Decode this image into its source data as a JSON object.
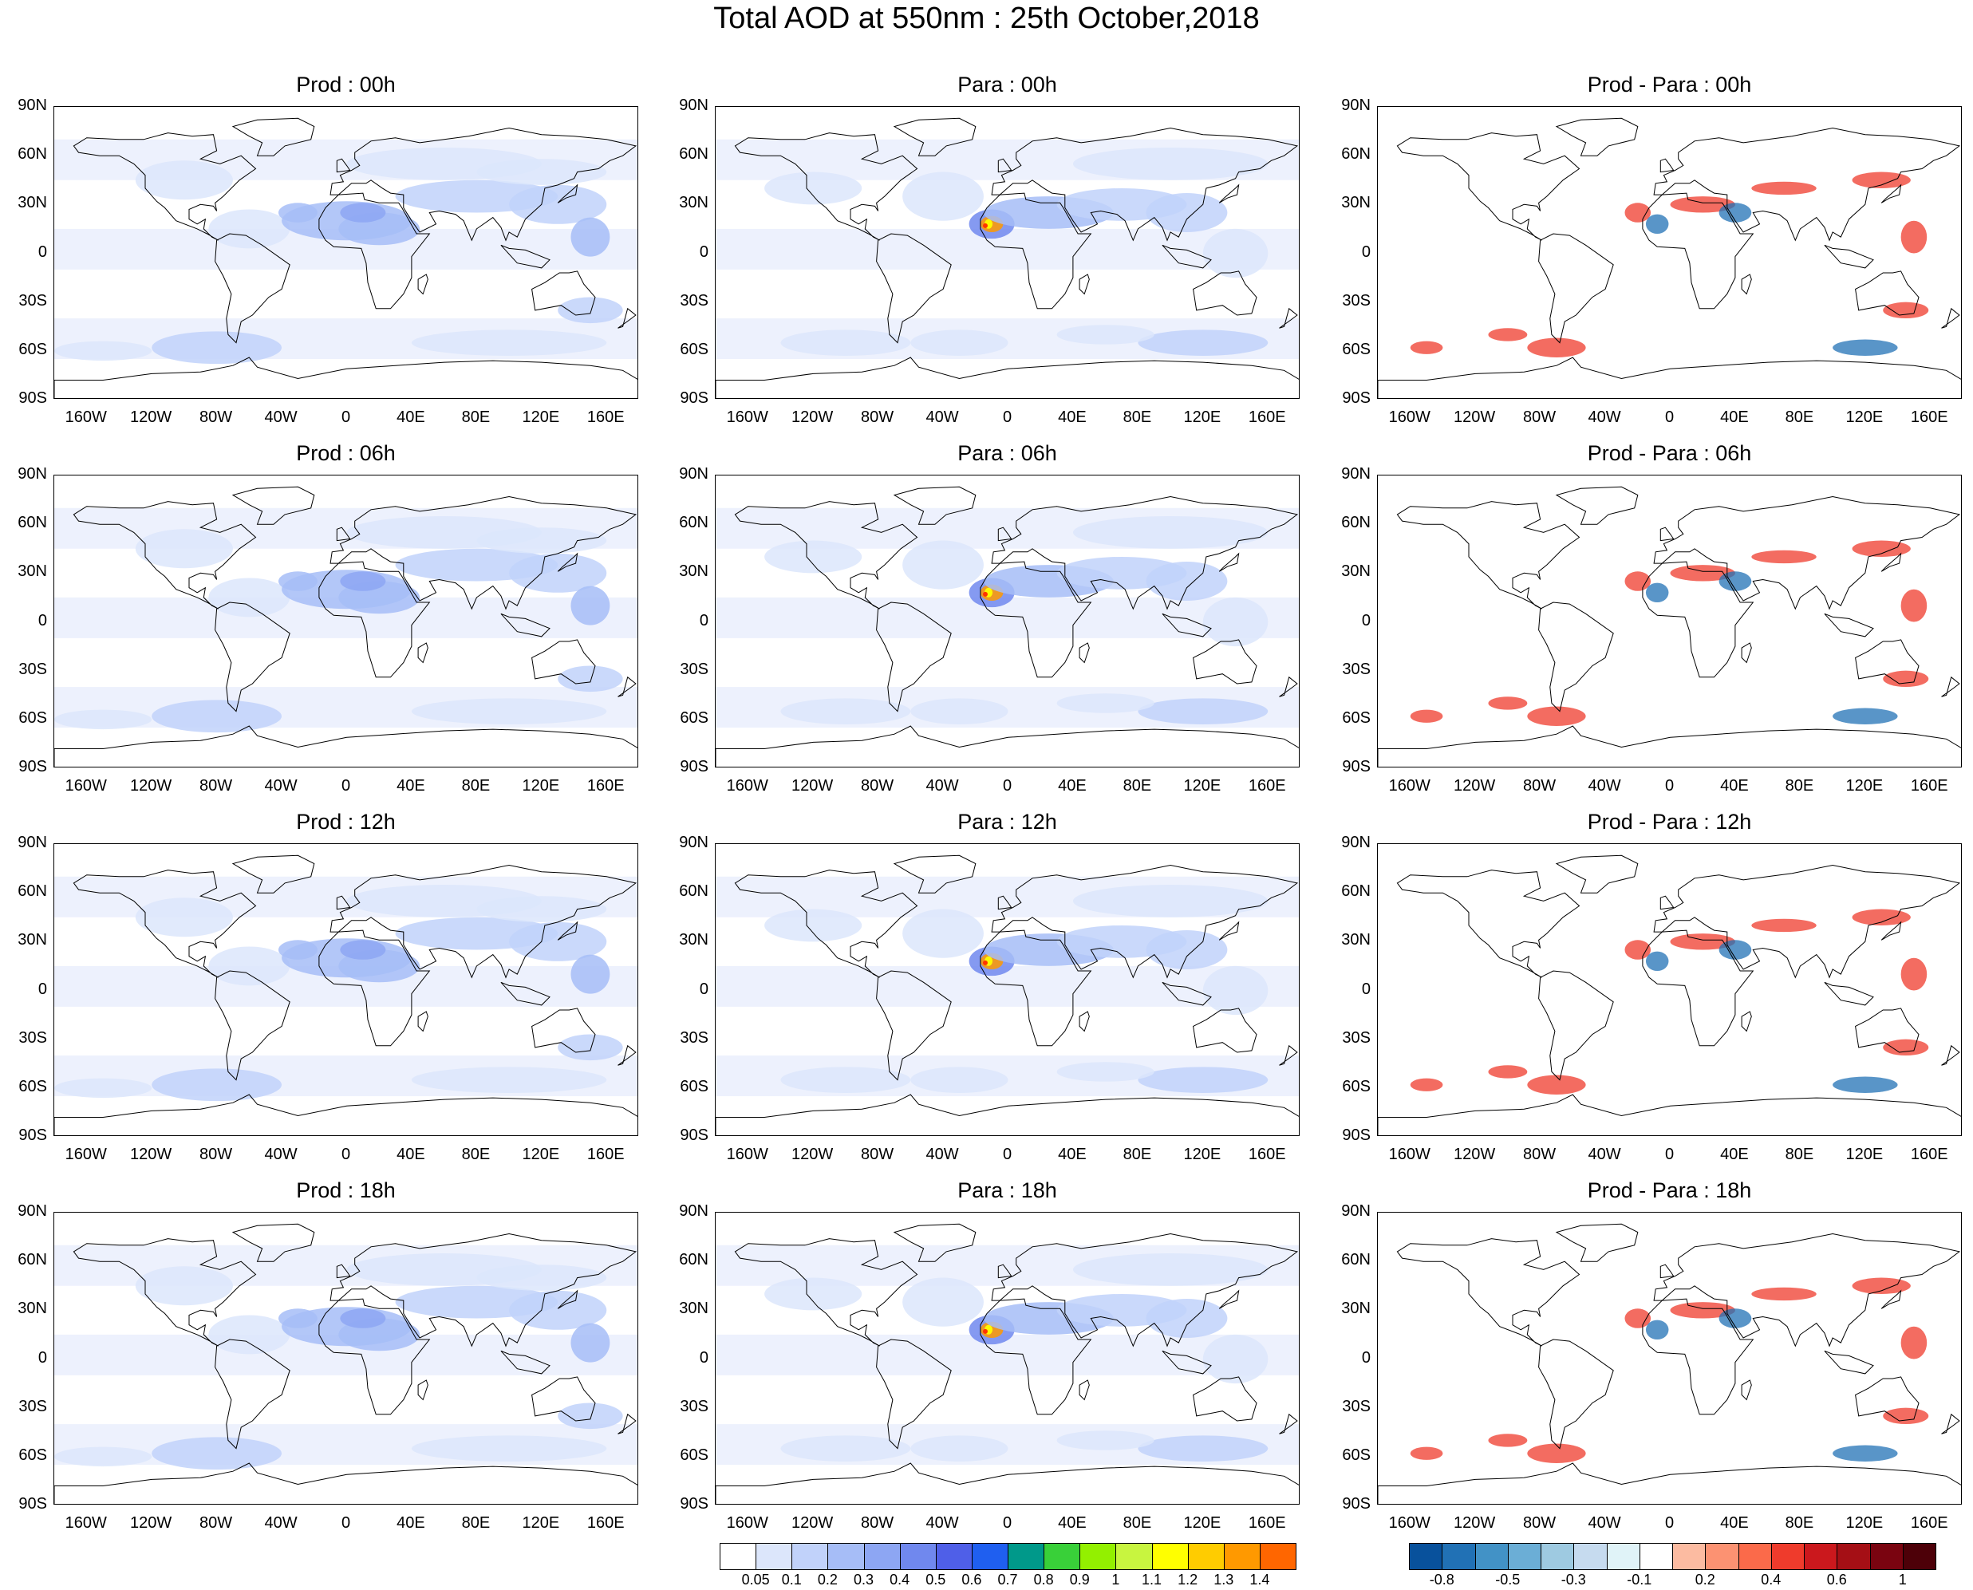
{
  "title": "Total AOD at 550nm : 25th October,2018",
  "lat_labels": [
    "90N",
    "60N",
    "30N",
    "0",
    "30S",
    "60S",
    "90S"
  ],
  "lon_labels": [
    "160W",
    "120W",
    "80W",
    "40W",
    "0",
    "40E",
    "80E",
    "120E",
    "160E"
  ],
  "rows": [
    {
      "hour": "00h",
      "titles": [
        "Prod : 00h",
        "Para : 00h",
        "Prod - Para : 00h"
      ]
    },
    {
      "hour": "06h",
      "titles": [
        "Prod : 06h",
        "Para : 06h",
        "Prod - Para : 06h"
      ]
    },
    {
      "hour": "12h",
      "titles": [
        "Prod : 12h",
        "Para : 12h",
        "Prod - Para : 12h"
      ]
    },
    {
      "hour": "18h",
      "titles": [
        "Prod : 18h",
        "Para : 18h",
        "Prod - Para : 18h"
      ]
    }
  ],
  "aod_colorbar": {
    "labels": [
      "0.05",
      "0.1",
      "0.2",
      "0.3",
      "0.4",
      "0.5",
      "0.6",
      "0.7",
      "0.8",
      "0.9",
      "1",
      "1.1",
      "1.2",
      "1.3",
      "1.4"
    ],
    "colors": [
      "#ffffff",
      "#dce6fb",
      "#c1d2fa",
      "#a6bdf7",
      "#8da6f3",
      "#7088ee",
      "#4f5fe8",
      "#1f5ff0",
      "#00998a",
      "#39d039",
      "#93f000",
      "#c8f53f",
      "#ffff00",
      "#ffcc00",
      "#ff9900",
      "#ff6600"
    ]
  },
  "diff_colorbar": {
    "labels": [
      "-0.8",
      "-0.5",
      "-0.3",
      "-0.1",
      "0.2",
      "0.4",
      "0.6",
      "1"
    ],
    "colors": [
      "#08519c",
      "#2171b5",
      "#4292c6",
      "#6baed6",
      "#9ecae1",
      "#c6dbef",
      "#e0f3f8",
      "#ffffff",
      "#fcbba1",
      "#fc9272",
      "#fb6a4a",
      "#ef3b2c",
      "#cb181d",
      "#a50f15",
      "#7a0410",
      "#4d0008"
    ]
  },
  "colors": {
    "aod_light": "#dce6fb",
    "aod_mid": "#a6bdf7",
    "aod_dark": "#4f5fe8",
    "dust_hot": "#ff6600",
    "diff_pos": "#ef3b2c",
    "diff_neg": "#2171b5",
    "coastline": "#000000"
  }
}
